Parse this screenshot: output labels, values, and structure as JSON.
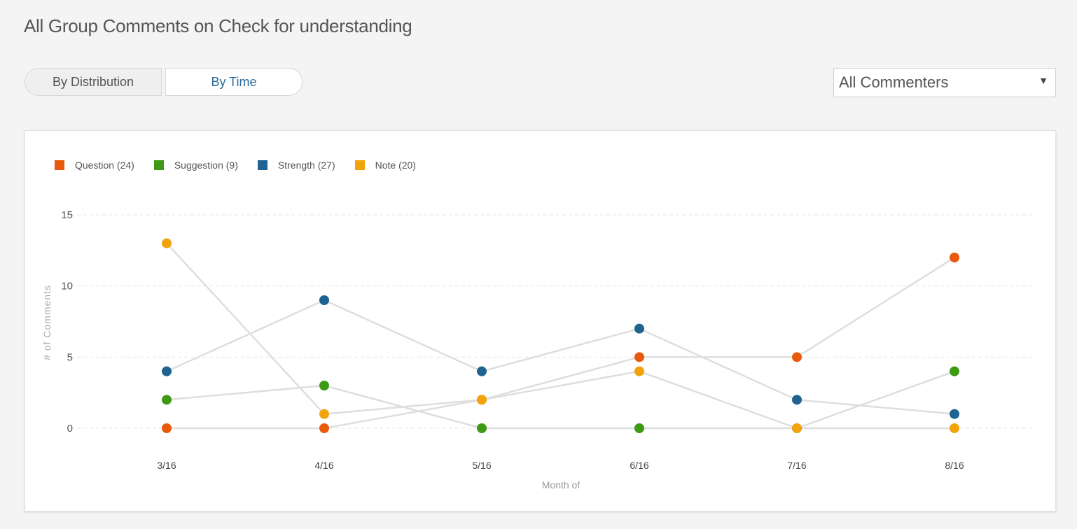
{
  "page": {
    "title": "All Group Comments on Check for understanding"
  },
  "toggle": {
    "by_distribution": "By Distribution",
    "by_time": "By Time",
    "active": "By Time"
  },
  "filter": {
    "selected": "All Commenters",
    "caret": "▼"
  },
  "colors": {
    "grid": "#e4e4e4",
    "line": "#dedede",
    "accent_active": "#2c6a99"
  },
  "chart_data": {
    "type": "line",
    "x": [
      "3/16",
      "4/16",
      "5/16",
      "6/16",
      "7/16",
      "8/16"
    ],
    "xlabel": "Month of",
    "ylabel": "# of Comments",
    "ylim": [
      0,
      15
    ],
    "yticks": [
      0,
      5,
      10,
      15
    ],
    "grid": true,
    "legend_position": "top-left",
    "series": [
      {
        "name": "Question",
        "legend_label": "Question (24)",
        "color": "#e8590c",
        "values": [
          0,
          0,
          2,
          5,
          5,
          12
        ]
      },
      {
        "name": "Suggestion",
        "legend_label": "Suggestion (9)",
        "color": "#3d9a13",
        "values": [
          2,
          3,
          0,
          0,
          0,
          4
        ]
      },
      {
        "name": "Strength",
        "legend_label": "Strength (27)",
        "color": "#1f6391",
        "values": [
          4,
          9,
          4,
          7,
          2,
          1
        ]
      },
      {
        "name": "Note",
        "legend_label": "Note (20)",
        "color": "#f0a30a",
        "values": [
          13,
          1,
          2,
          4,
          0,
          0
        ]
      }
    ]
  }
}
